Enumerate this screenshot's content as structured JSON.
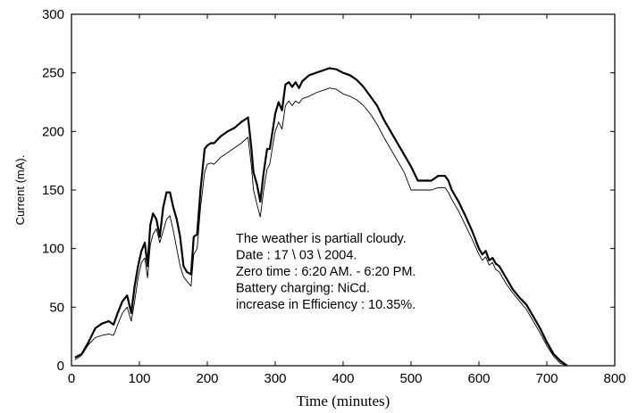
{
  "chart_data": {
    "type": "line",
    "xlabel": "Time (minutes)",
    "ylabel": "Current (mA).",
    "xlim": [
      0,
      800
    ],
    "ylim": [
      0,
      300
    ],
    "xticks": [
      0,
      100,
      200,
      300,
      400,
      500,
      600,
      700,
      800
    ],
    "yticks": [
      0,
      50,
      100,
      150,
      200,
      250,
      300
    ],
    "grid": false,
    "annotations": [
      "The weather is partiall cloudy.",
      "Date : 17 \\ 03 \\ 2004.",
      "Zero time : 6:20 AM. - 6:20 PM.",
      "Battery charging: NiCd.",
      "increase in Efficiency : 10.35%."
    ],
    "series": [
      {
        "style": "thick",
        "color": "#000000",
        "x": [
          5,
          15,
          25,
          35,
          45,
          55,
          62,
          68,
          75,
          82,
          88,
          93,
          98,
          103,
          108,
          112,
          116,
          120,
          125,
          130,
          135,
          140,
          145,
          150,
          155,
          160,
          165,
          170,
          176,
          180,
          185,
          190,
          196,
          200,
          205,
          210,
          215,
          220,
          230,
          240,
          250,
          260,
          265,
          268,
          273,
          278,
          283,
          288,
          292,
          296,
          300,
          305,
          310,
          315,
          320,
          325,
          330,
          335,
          340,
          350,
          360,
          370,
          380,
          390,
          400,
          410,
          420,
          430,
          440,
          450,
          460,
          465,
          470,
          475,
          480,
          490,
          500,
          510,
          520,
          530,
          540,
          550,
          555,
          560,
          570,
          580,
          590,
          600,
          605,
          610,
          615,
          620,
          625,
          630,
          640,
          650,
          660,
          670,
          680,
          690,
          700,
          710,
          720,
          730
        ],
        "y": [
          7,
          10,
          20,
          32,
          36,
          38,
          35,
          45,
          55,
          60,
          45,
          68,
          85,
          98,
          105,
          85,
          120,
          130,
          125,
          110,
          135,
          148,
          148,
          135,
          125,
          110,
          85,
          80,
          78,
          110,
          112,
          150,
          185,
          188,
          190,
          190,
          193,
          196,
          200,
          203,
          208,
          212,
          185,
          165,
          155,
          140,
          165,
          185,
          185,
          200,
          215,
          225,
          218,
          240,
          242,
          238,
          242,
          237,
          243,
          248,
          250,
          252,
          254,
          253,
          250,
          248,
          244,
          238,
          230,
          222,
          210,
          205,
          200,
          195,
          190,
          180,
          170,
          158,
          158,
          158,
          162,
          162,
          158,
          150,
          140,
          128,
          115,
          100,
          95,
          98,
          90,
          92,
          87,
          85,
          75,
          65,
          58,
          52,
          42,
          32,
          20,
          10,
          4,
          0
        ]
      },
      {
        "style": "thin",
        "color": "#000000",
        "x": [
          5,
          15,
          25,
          35,
          45,
          55,
          62,
          68,
          75,
          82,
          88,
          93,
          98,
          103,
          108,
          112,
          116,
          120,
          125,
          130,
          135,
          140,
          145,
          150,
          155,
          160,
          165,
          170,
          176,
          180,
          185,
          190,
          196,
          200,
          205,
          210,
          215,
          220,
          230,
          240,
          250,
          260,
          265,
          268,
          273,
          278,
          283,
          288,
          292,
          296,
          300,
          305,
          310,
          315,
          320,
          325,
          330,
          335,
          340,
          350,
          360,
          370,
          380,
          390,
          400,
          410,
          420,
          430,
          440,
          450,
          460,
          465,
          470,
          475,
          480,
          490,
          500,
          510,
          520,
          530,
          540,
          550,
          555,
          560,
          570,
          580,
          590,
          600,
          605,
          610,
          615,
          620,
          625,
          630,
          640,
          650,
          660,
          670,
          680,
          690,
          700,
          710,
          720,
          730
        ],
        "y": [
          5,
          9,
          18,
          24,
          26,
          27,
          26,
          35,
          45,
          50,
          38,
          55,
          75,
          88,
          92,
          75,
          103,
          112,
          117,
          105,
          115,
          125,
          128,
          115,
          100,
          85,
          76,
          72,
          68,
          95,
          100,
          135,
          165,
          172,
          173,
          172,
          175,
          178,
          182,
          186,
          190,
          195,
          170,
          150,
          138,
          127,
          150,
          168,
          172,
          187,
          200,
          208,
          202,
          222,
          226,
          222,
          226,
          224,
          228,
          230,
          233,
          235,
          237,
          236,
          232,
          230,
          227,
          222,
          215,
          206,
          195,
          190,
          185,
          180,
          175,
          165,
          150,
          150,
          150,
          150,
          152,
          152,
          148,
          142,
          132,
          120,
          108,
          95,
          90,
          93,
          86,
          88,
          82,
          80,
          70,
          62,
          55,
          48,
          38,
          28,
          17,
          8,
          2,
          0
        ]
      }
    ]
  }
}
